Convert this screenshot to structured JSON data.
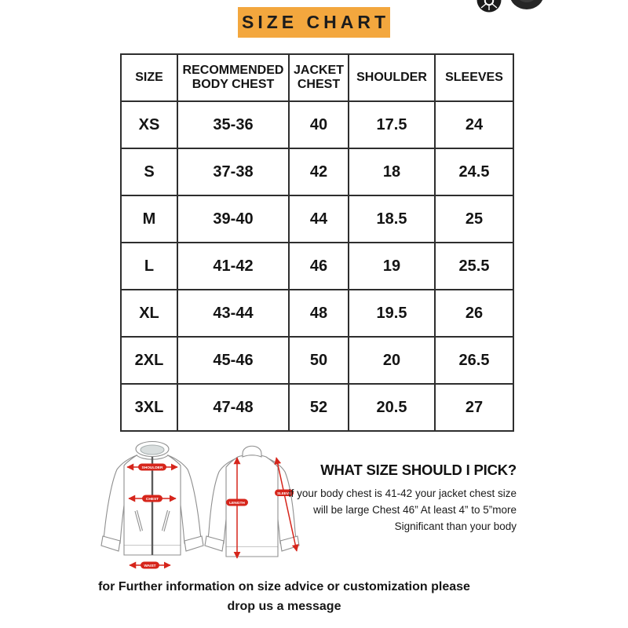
{
  "title": {
    "label": "SIZE CHART"
  },
  "chart_data": {
    "type": "table",
    "title": "SIZE CHART",
    "columns": [
      "SIZE",
      "RECOMMENDED BODY CHEST",
      "JACKET CHEST",
      "SHOULDER",
      "SLEEVES"
    ],
    "rows": [
      [
        "XS",
        "35-36",
        "40",
        "17.5",
        "24"
      ],
      [
        "S",
        "37-38",
        "42",
        "18",
        "24.5"
      ],
      [
        "M",
        "39-40",
        "44",
        "18.5",
        "25"
      ],
      [
        "L",
        "41-42",
        "46",
        "19",
        "25.5"
      ],
      [
        "XL",
        "43-44",
        "48",
        "19.5",
        "26"
      ],
      [
        "2XL",
        "45-46",
        "50",
        "20",
        "26.5"
      ],
      [
        "3XL",
        "47-48",
        "52",
        "20.5",
        "27"
      ]
    ]
  },
  "diagram": {
    "labels": {
      "shoulder": "SHOULDER",
      "chest": "CHEST",
      "waist": "WAIST",
      "length": "LENGTH",
      "sleeve": "SLEEVE"
    }
  },
  "size_guide": {
    "heading": "WHAT SIZE SHOULD I PICK?",
    "lines": [
      "if your body chest is 41-42 your jacket chest size",
      "will be large Chest 46” At least 4” to 5”more",
      "Significant than your body"
    ]
  },
  "footer": {
    "lines": [
      "for Further information on size advice or customization please",
      "drop us a message"
    ]
  },
  "icons": {
    "top_right": [
      "wheel-icon",
      "wheel-icon"
    ]
  },
  "colors": {
    "accent_orange": "#F3A73E",
    "label_red": "#D6251B",
    "border": "#2e2e2e",
    "text": "#161616"
  }
}
